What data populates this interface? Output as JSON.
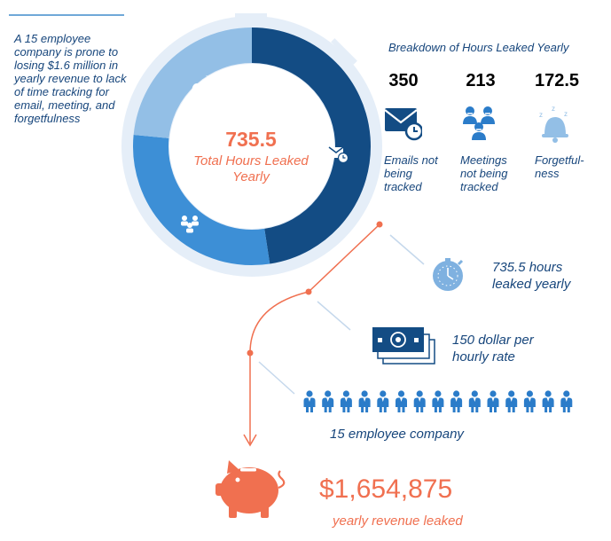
{
  "intro_text": "A 15 employee company is prone to losing $1.6 million in yearly revenue to lack of time tracking for email, meeting, and forgetfulness",
  "donut": {
    "value": "735.5",
    "label": "Total Hours Leaked Yearly"
  },
  "breakdown": {
    "title": "Breakdown of Hours Leaked Yearly",
    "items": [
      {
        "value": "350",
        "label": "Emails not being tracked",
        "color": "#134c84",
        "icon": "email-clock-icon"
      },
      {
        "value": "213",
        "label": "Meetings not being tracked",
        "color": "#2b7cc9",
        "icon": "people-group-icon"
      },
      {
        "value": "172.5",
        "label": "Forgetful-ness",
        "color": "#93bfe6",
        "icon": "sleeping-bell-icon"
      }
    ]
  },
  "steps": [
    {
      "text": "735.5 hours leaked yearly",
      "icon": "stopwatch-icon"
    },
    {
      "text": "150 dollar per hourly rate",
      "icon": "money-stack-icon"
    },
    {
      "text": "15 employee company",
      "icon": "person-icon"
    }
  ],
  "employee_count": 15,
  "total": {
    "value": "$1,654,875",
    "label": "yearly revenue leaked",
    "icon": "piggy-bank-icon"
  },
  "colors": {
    "navy": "#134c84",
    "mid_blue": "#3d8fd6",
    "light_blue": "#93bfe6",
    "pale_ring": "#e5eef8",
    "coral": "#f07050",
    "text": "#17467c"
  },
  "chart_data": {
    "type": "pie",
    "categories": [
      "Emails not being tracked",
      "Meetings not being tracked",
      "Forgetful-ness"
    ],
    "values": [
      350,
      213,
      172.5
    ],
    "total": 735.5
  }
}
